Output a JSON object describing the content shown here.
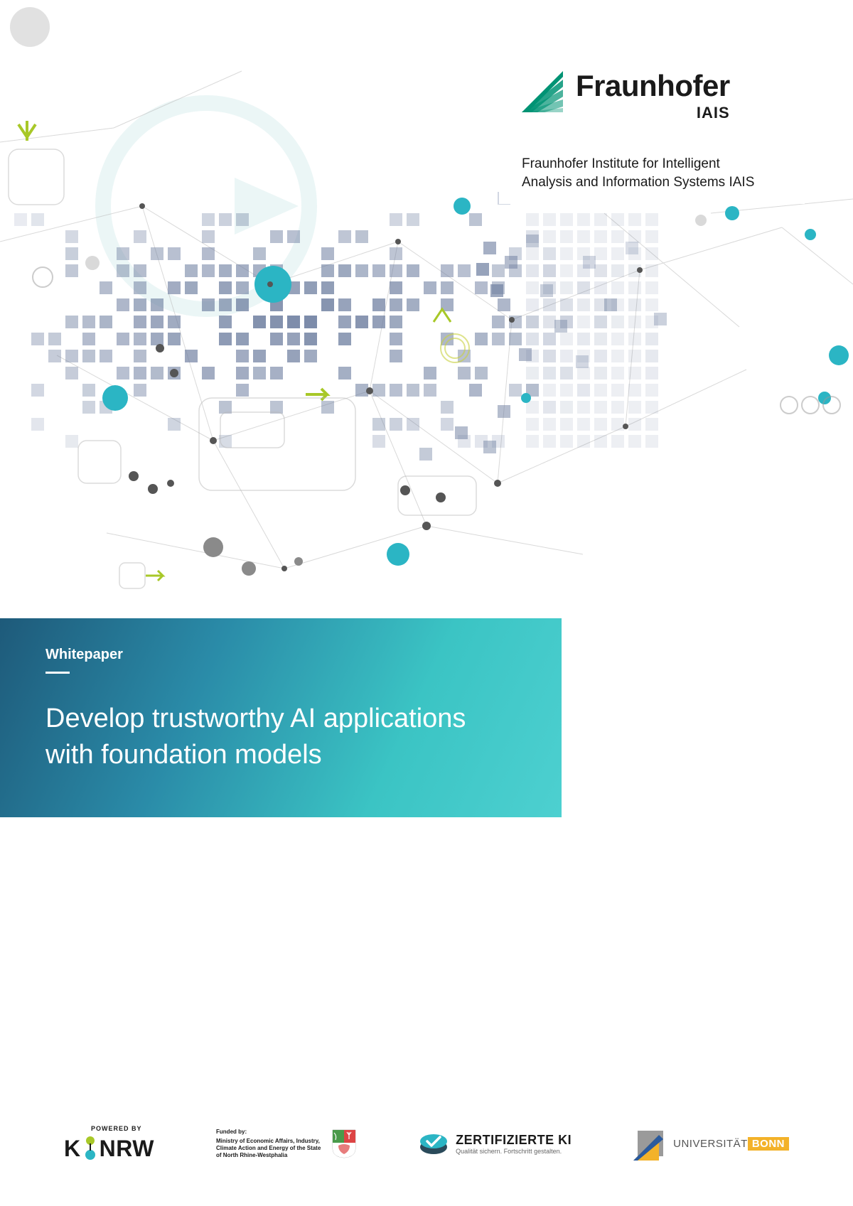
{
  "colors": {
    "teal_primary": "#2bb5c4",
    "teal_light": "#4dd0d0",
    "teal_dark": "#1e7a8c",
    "blue_gray": "#6b7c9e",
    "blue_gray_light": "#8a96b0",
    "lime": "#a8c828",
    "gray_light": "#d4d4d4",
    "gray_mid": "#999999",
    "gray_dark": "#555555",
    "text_dark": "#1a1a1a",
    "white": "#ffffff",
    "bonn_gold": "#f3b229",
    "bonn_blue": "#2a5a9e"
  },
  "fraunhofer": {
    "name": "Fraunhofer",
    "sub": "IAIS",
    "institute_line1": "Fraunhofer Institute for Intelligent",
    "institute_line2": "Analysis and Information Systems IAIS",
    "icon_color": "#009374"
  },
  "banner": {
    "label": "Whitepaper",
    "title_line1": "Develop trustworthy AI applications",
    "title_line2": "with foundation models",
    "gradient_start": "#1e5a7a",
    "gradient_end": "#4dd0d0"
  },
  "footer": {
    "kinrw": {
      "powered_by": "POWERED BY",
      "k": "K",
      "nrw": "NRW",
      "dot_green": "#a8c828",
      "dot_teal": "#2bb5c4"
    },
    "ministry": {
      "funded_by": "Funded by:",
      "text": "Ministry of Economic Affairs, Industry, Climate Action and Energy of the State of North Rhine-Westphalia"
    },
    "zertifizierte": {
      "main": "ZERTIFIZIERTE KI",
      "sub": "Qualität sichern. Fortschritt gestalten.",
      "icon_teal": "#2bb5c4",
      "icon_dark": "#2a4a5a"
    },
    "bonn": {
      "prefix": "UNIVERSITÄT",
      "name": "BONN",
      "gold": "#f3b229",
      "blue": "#2a5a9e",
      "gray": "#9a9a9a"
    }
  },
  "graphic": {
    "square_color": "#6b7c9e",
    "square_opacity_range": [
      0.15,
      0.85
    ],
    "circle_teal": "#2bb5c4",
    "circle_gray": "#c0c0c0",
    "line_color": "#b8b8b8",
    "arrow_lime": "#a8c828",
    "node_dark": "#555555"
  }
}
